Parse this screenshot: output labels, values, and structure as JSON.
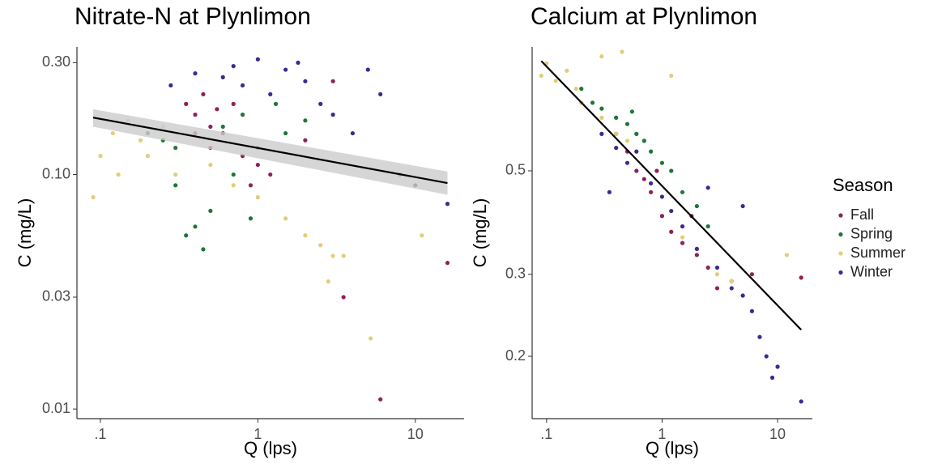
{
  "chart_data": [
    {
      "type": "scatter",
      "title": "Nitrate-N at Plynlimon",
      "x_label": "Q (lps)",
      "y_label": "C (mg/L)",
      "xscale": "log",
      "yscale": "log",
      "xlim": [
        0.071,
        20.4
      ],
      "ylim": [
        0.0091,
        0.35
      ],
      "xticks": [
        {
          "value": 0.1,
          "label": ".1"
        },
        1,
        10
      ],
      "yticks": [
        0.01,
        0.03,
        {
          "value": 0.1,
          "label": "0.10"
        },
        {
          "value": 0.3,
          "label": "0.30"
        }
      ],
      "fit": {
        "color": "#000000",
        "band_color": "#cccccc",
        "x": [
          0.09,
          16
        ],
        "values": [
          0.175,
          0.092
        ],
        "lower": [
          0.16,
          0.082
        ],
        "upper": [
          0.19,
          0.103
        ]
      },
      "series": [
        {
          "color": "#8E2157",
          "x": [
            0.35,
            0.4,
            0.45,
            0.5,
            0.55,
            0.6,
            0.7,
            0.4,
            0.8,
            1.0,
            1.2,
            0.9,
            2,
            3,
            3.5,
            6,
            16,
            0.5
          ],
          "values": [
            0.2,
            0.18,
            0.22,
            0.16,
            0.19,
            0.15,
            0.2,
            0.15,
            0.12,
            0.11,
            0.1,
            0.09,
            0.14,
            0.25,
            0.03,
            0.011,
            0.042,
            0.13
          ]
        },
        {
          "color": "#1B7837",
          "x": [
            0.2,
            0.25,
            0.3,
            0.4,
            0.45,
            0.5,
            0.6,
            0.8,
            1,
            1.3,
            1.5,
            0.7,
            0.3,
            2,
            0.9,
            0.35
          ],
          "values": [
            0.15,
            0.14,
            0.13,
            0.06,
            0.048,
            0.07,
            0.16,
            0.18,
            0.13,
            0.2,
            0.15,
            0.1,
            0.09,
            0.17,
            0.065,
            0.055
          ]
        },
        {
          "color": "#E3CC7A",
          "x": [
            0.09,
            0.1,
            0.12,
            0.15,
            0.18,
            0.2,
            0.3,
            0.5,
            0.7,
            1,
            1.5,
            2,
            2.5,
            3,
            3.5,
            2.8,
            5.2,
            11,
            0.13,
            0.25
          ],
          "values": [
            0.08,
            0.12,
            0.15,
            0.17,
            0.14,
            0.12,
            0.1,
            0.11,
            0.09,
            0.08,
            0.065,
            0.055,
            0.05,
            0.045,
            0.045,
            0.035,
            0.02,
            0.055,
            0.1,
            0.16
          ]
        },
        {
          "color": "#3B2A8F",
          "x": [
            0.28,
            0.4,
            0.6,
            0.8,
            1,
            1.2,
            1.5,
            2,
            2.5,
            3,
            4,
            5,
            6,
            8,
            10,
            16,
            0.7,
            1.8
          ],
          "values": [
            0.24,
            0.27,
            0.26,
            0.24,
            0.31,
            0.22,
            0.28,
            0.25,
            0.2,
            0.18,
            0.15,
            0.28,
            0.22,
            0.1,
            0.09,
            0.075,
            0.29,
            0.3
          ]
        }
      ]
    },
    {
      "type": "scatter",
      "title": "Calcium at Plynlimon",
      "x_label": "Q (lps)",
      "y_label": "C (mg/L)",
      "xscale": "log",
      "yscale": "log",
      "xlim": [
        0.075,
        20
      ],
      "ylim": [
        0.147,
        0.922
      ],
      "xticks": [
        {
          "value": 0.1,
          "label": ".1"
        },
        1,
        10
      ],
      "yticks": [
        0.2,
        0.3,
        0.5
      ],
      "legend": "right",
      "legend_title": "Season",
      "fit": {
        "color": "#000000",
        "x": [
          0.09,
          16
        ],
        "values": [
          0.86,
          0.228
        ]
      },
      "series": [
        {
          "name": "Fall",
          "color": "#8E2157",
          "x": [
            0.4,
            0.5,
            0.6,
            0.7,
            0.8,
            1,
            1.2,
            1.5,
            2,
            2.5,
            3,
            4,
            6,
            16,
            0.9,
            1.8
          ],
          "values": [
            0.6,
            0.55,
            0.5,
            0.48,
            0.45,
            0.4,
            0.37,
            0.35,
            0.33,
            0.31,
            0.28,
            0.29,
            0.3,
            0.295,
            0.5,
            0.4
          ]
        },
        {
          "name": "Spring",
          "color": "#1B7837",
          "x": [
            0.2,
            0.25,
            0.3,
            0.4,
            0.5,
            0.6,
            0.7,
            0.8,
            1,
            1.2,
            1.5,
            2,
            2.5,
            0.55
          ],
          "values": [
            0.75,
            0.7,
            0.68,
            0.65,
            0.63,
            0.6,
            0.58,
            0.55,
            0.52,
            0.5,
            0.45,
            0.42,
            0.38,
            0.67
          ]
        },
        {
          "name": "Summer",
          "color": "#E3CC7A",
          "x": [
            0.09,
            0.1,
            0.12,
            0.15,
            0.18,
            0.2,
            0.3,
            0.4,
            0.5,
            0.3,
            0.45,
            1.5,
            2,
            3,
            4,
            12,
            1.2
          ],
          "values": [
            0.8,
            0.85,
            0.78,
            0.82,
            0.75,
            0.7,
            0.65,
            0.6,
            0.58,
            0.88,
            0.9,
            0.36,
            0.34,
            0.3,
            0.29,
            0.33,
            0.8
          ]
        },
        {
          "name": "Winter",
          "color": "#3B2A8F",
          "x": [
            0.3,
            0.4,
            0.5,
            0.6,
            0.8,
            1,
            1.2,
            1.5,
            2,
            3,
            4,
            5,
            6,
            7,
            9,
            10,
            16,
            0.35,
            5,
            2.5,
            8
          ],
          "values": [
            0.6,
            0.56,
            0.52,
            0.55,
            0.47,
            0.44,
            0.41,
            0.38,
            0.34,
            0.31,
            0.28,
            0.27,
            0.25,
            0.22,
            0.18,
            0.19,
            0.16,
            0.45,
            0.42,
            0.46,
            0.2
          ]
        }
      ]
    }
  ]
}
